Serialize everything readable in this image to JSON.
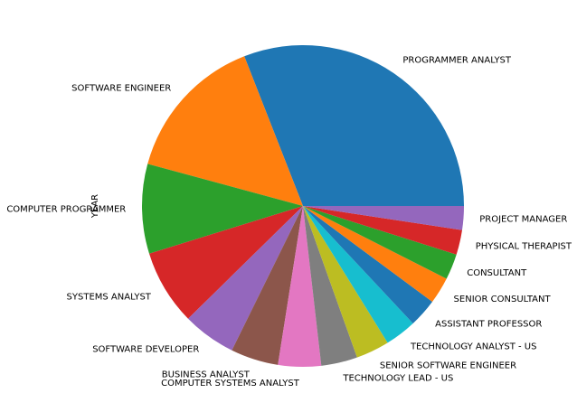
{
  "chart_data": {
    "type": "pie",
    "ylabel": "YEAR",
    "start_angle_deg": 0,
    "direction": "counterclockwise",
    "slices": [
      {
        "label": "PROGRAMMER ANALYST",
        "value": 32.3,
        "color": "#1f77b4"
      },
      {
        "label": "SOFTWARE ENGINEER",
        "value": 15.5,
        "color": "#ff7f0e"
      },
      {
        "label": "COMPUTER PROGRAMMER",
        "value": 9.4,
        "color": "#2ca02c"
      },
      {
        "label": "SYSTEMS ANALYST",
        "value": 7.9,
        "color": "#d62728"
      },
      {
        "label": "SOFTWARE DEVELOPER",
        "value": 5.6,
        "color": "#9467bd"
      },
      {
        "label": "BUSINESS ANALYST",
        "value": 5.0,
        "color": "#8c564b"
      },
      {
        "label": "COMPUTER SYSTEMS ANALYST",
        "value": 4.5,
        "color": "#e377c2"
      },
      {
        "label": "TECHNOLOGY LEAD - US",
        "value": 3.8,
        "color": "#7f7f7f"
      },
      {
        "label": "SENIOR SOFTWARE ENGINEER",
        "value": 3.5,
        "color": "#bcbd22"
      },
      {
        "label": "TECHNOLOGY ANALYST - US",
        "value": 3.3,
        "color": "#17becf"
      },
      {
        "label": "ASSISTANT PROFESSOR",
        "value": 3.0,
        "color": "#1f77b4"
      },
      {
        "label": "SENIOR CONSULTANT",
        "value": 2.8,
        "color": "#ff7f0e"
      },
      {
        "label": "CONSULTANT",
        "value": 2.7,
        "color": "#2ca02c"
      },
      {
        "label": "PHYSICAL THERAPIST",
        "value": 2.6,
        "color": "#d62728"
      },
      {
        "label": "PROJECT MANAGER",
        "value": 2.5,
        "color": "#9467bd"
      }
    ]
  }
}
